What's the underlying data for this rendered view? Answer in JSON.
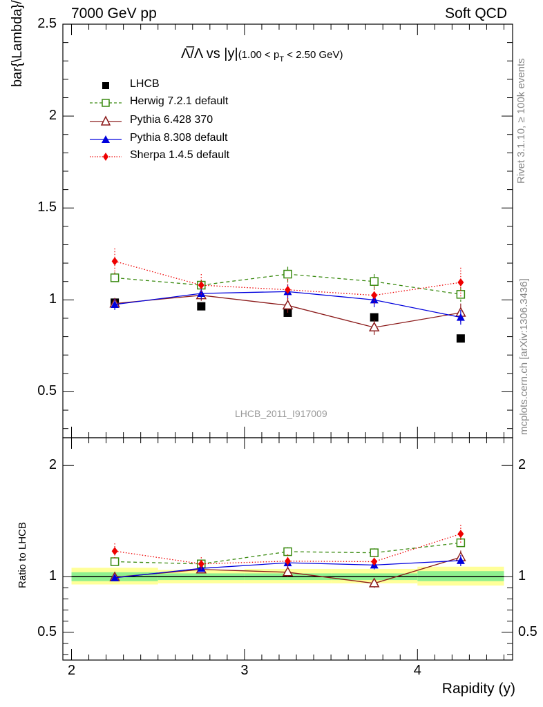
{
  "header": {
    "left": "7000 GeV pp",
    "right": "Soft QCD"
  },
  "side_labels": {
    "rivet": "Rivet 3.1.10, ≥ 100k events",
    "mcplots": "mcplots.cern.ch [arXiv:1306.3436]"
  },
  "watermark": "LHCB_2011_I917009",
  "colors": {
    "herwig": "#3a8a10",
    "pythia6": "#8b1a1a",
    "pythia8": "#0000dd",
    "sherpa": "#ee0000",
    "lhcb": "#000000",
    "band_inner": "#8ff08f",
    "band_outer": "#ffff99"
  },
  "chart_data": [
    {
      "type": "line",
      "panel": "main",
      "title_main": "Λ̅/Λ vs |y|",
      "title_cut": "(1.00 < p",
      "title_sub": "T",
      "title_cut_end": " < 2.50 GeV)",
      "ylabel": "bar{\\Lambda}/\\Lambda",
      "xlim": [
        1.95,
        4.55
      ],
      "ylim": [
        0.25,
        2.5
      ],
      "yticks": [
        0.5,
        1,
        1.5,
        2,
        2.5
      ],
      "ytick_labels": [
        "0.5",
        "1",
        "1.5",
        "2",
        "2.5"
      ],
      "x": [
        2.25,
        2.75,
        3.25,
        3.75,
        4.25
      ],
      "series": [
        {
          "key": "lhcb",
          "name": "LHCB",
          "marker": "square-filled",
          "values": [
            0.985,
            0.965,
            0.93,
            0.905,
            0.79
          ],
          "errors": [
            0.02,
            0.02,
            0.02,
            0.02,
            0.02
          ]
        },
        {
          "key": "herwig",
          "name": "Herwig 7.2.1 default",
          "marker": "square-open",
          "dash": "dashed",
          "values": [
            1.12,
            1.08,
            1.14,
            1.1,
            1.03
          ],
          "errors": [
            0.03,
            0.03,
            0.04,
            0.04,
            0.04
          ]
        },
        {
          "key": "pythia6",
          "name": "Pythia 6.428 370",
          "marker": "triangle-open",
          "dash": "solid",
          "values": [
            0.98,
            1.025,
            0.97,
            0.85,
            0.93
          ],
          "errors": [
            0.03,
            0.03,
            0.04,
            0.04,
            0.05
          ]
        },
        {
          "key": "pythia8",
          "name": "Pythia 8.308 default",
          "marker": "triangle-filled",
          "dash": "solid",
          "values": [
            0.975,
            1.035,
            1.045,
            1.0,
            0.905
          ],
          "errors": [
            0.03,
            0.03,
            0.04,
            0.04,
            0.04
          ]
        },
        {
          "key": "sherpa",
          "name": "Sherpa 1.4.5 default",
          "marker": "diamond-filled",
          "dash": "dotted",
          "values": [
            1.21,
            1.08,
            1.055,
            1.025,
            1.095
          ],
          "errors": [
            0.07,
            0.06,
            0.06,
            0.05,
            0.08
          ]
        }
      ]
    },
    {
      "type": "line",
      "panel": "ratio",
      "ylabel": "Ratio to LHCB",
      "xlabel": "Rapidity (y)",
      "xlim": [
        1.95,
        4.55
      ],
      "ylim": [
        0.25,
        2.25
      ],
      "yticks": [
        0.5,
        1,
        2
      ],
      "ytick_labels": [
        "0.5",
        "1",
        "2"
      ],
      "xticks": [
        2,
        3,
        4
      ],
      "xtick_labels": [
        "2",
        "3",
        "4"
      ],
      "x": [
        2.25,
        2.75,
        3.25,
        3.75,
        4.25
      ],
      "band_bins": [
        [
          2.0,
          2.5
        ],
        [
          2.5,
          3.0
        ],
        [
          3.0,
          3.5
        ],
        [
          3.5,
          4.0
        ],
        [
          4.0,
          4.5
        ]
      ],
      "band_inner": [
        [
          0.96,
          1.04
        ],
        [
          0.97,
          1.03
        ],
        [
          0.97,
          1.03
        ],
        [
          0.97,
          1.03
        ],
        [
          0.96,
          1.05
        ]
      ],
      "band_outer": [
        [
          0.93,
          1.08
        ],
        [
          0.94,
          1.06
        ],
        [
          0.94,
          1.07
        ],
        [
          0.94,
          1.07
        ],
        [
          0.92,
          1.09
        ]
      ],
      "series": [
        {
          "key": "herwig",
          "name": "Herwig 7.2.1 default",
          "marker": "square-open",
          "dash": "dashed",
          "values": [
            1.135,
            1.115,
            1.225,
            1.215,
            1.305
          ],
          "errors": [
            0.03,
            0.03,
            0.04,
            0.04,
            0.05
          ]
        },
        {
          "key": "pythia6",
          "name": "Pythia 6.428 370",
          "marker": "triangle-open",
          "dash": "solid",
          "values": [
            0.995,
            1.065,
            1.04,
            0.94,
            1.175
          ],
          "errors": [
            0.03,
            0.03,
            0.04,
            0.04,
            0.06
          ]
        },
        {
          "key": "pythia8",
          "name": "Pythia 8.308 default",
          "marker": "triangle-filled",
          "dash": "solid",
          "values": [
            0.99,
            1.075,
            1.125,
            1.105,
            1.145
          ],
          "errors": [
            0.03,
            0.03,
            0.04,
            0.04,
            0.05
          ]
        },
        {
          "key": "sherpa",
          "name": "Sherpa 1.4.5 default",
          "marker": "diamond-filled",
          "dash": "dotted",
          "values": [
            1.23,
            1.115,
            1.14,
            1.135,
            1.385
          ],
          "errors": [
            0.07,
            0.06,
            0.06,
            0.05,
            0.08
          ]
        }
      ]
    }
  ]
}
